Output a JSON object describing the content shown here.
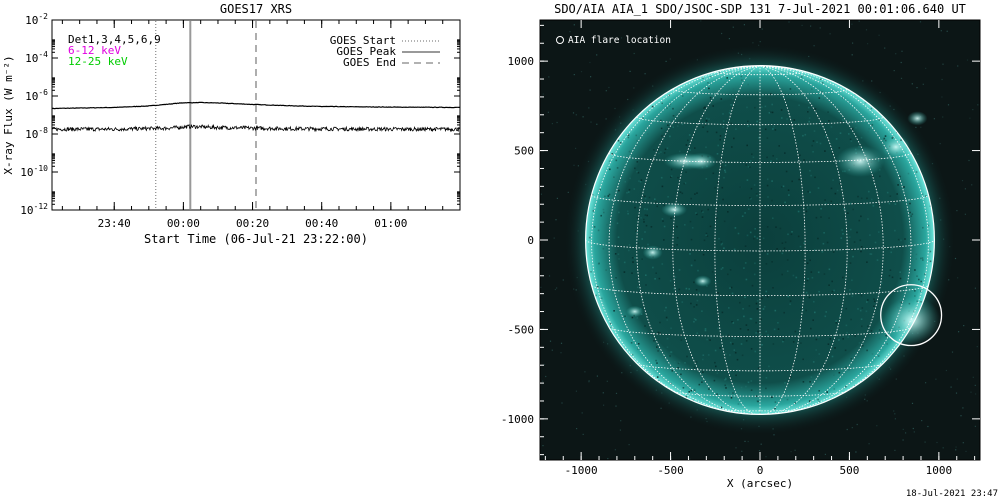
{
  "chart_data": [
    {
      "type": "line",
      "title": "GOES17 XRS",
      "xlabel": "Start Time (06-Jul-21 23:22:00)",
      "ylabel": "X-ray Flux (W m⁻²)",
      "y_scale": "log",
      "xlim": [
        "2021-07-06 23:22:00",
        "2021-07-07 01:20:00"
      ],
      "ylim": [
        1e-12,
        0.01
      ],
      "x_ticks": [
        "23:40",
        "00:00",
        "00:20",
        "00:40",
        "01:00"
      ],
      "y_ticks": [
        {
          "value": 0.01,
          "label_base": "10",
          "label_exp": "-2"
        },
        {
          "value": 0.0001,
          "label_base": "10",
          "label_exp": "-4"
        },
        {
          "value": 1e-06,
          "label_base": "10",
          "label_exp": "-6"
        },
        {
          "value": 1e-08,
          "label_base": "10",
          "label_exp": "-8"
        },
        {
          "value": 1e-10,
          "label_base": "10",
          "label_exp": "-10"
        },
        {
          "value": 1e-12,
          "label_base": "10",
          "label_exp": "-12"
        }
      ],
      "annotations": [
        {
          "text": "Det1,3,4,5,6,9",
          "color": "#000000"
        },
        {
          "text": "6-12 keV",
          "color": "#e000e0"
        },
        {
          "text": "12-25 keV",
          "color": "#00cc00"
        }
      ],
      "legend": [
        {
          "label": "GOES Start",
          "style": "dotted"
        },
        {
          "label": "GOES Peak",
          "style": "solid"
        },
        {
          "label": "GOES End",
          "style": "dashed"
        }
      ],
      "legend_placement": "top-right",
      "event_markers": [
        {
          "name": "GOES Start",
          "time": "2021-07-06 23:52:00",
          "style": "dotted"
        },
        {
          "name": "GOES Peak",
          "time": "2021-07-07 00:02:00",
          "style": "solid"
        },
        {
          "name": "GOES End",
          "time": "2021-07-07 00:21:00",
          "style": "dashed"
        }
      ],
      "series": [
        {
          "band": "long",
          "x": [
            "2021-07-06 23:22:00",
            "2021-07-06 23:40:00",
            "2021-07-06 23:50:00",
            "2021-07-07 00:00:00",
            "2021-07-07 00:05:00",
            "2021-07-07 00:10:00",
            "2021-07-07 00:20:00",
            "2021-07-07 00:30:00",
            "2021-07-07 00:40:00",
            "2021-07-07 01:00:00",
            "2021-07-07 01:20:00"
          ],
          "y": [
            2.2e-07,
            2.5e-07,
            3e-07,
            4.4e-07,
            4.5e-07,
            4.3e-07,
            3.6e-07,
            3.1e-07,
            2.8e-07,
            2.6e-07,
            2.5e-07
          ]
        },
        {
          "band": "short",
          "x": [
            "2021-07-06 23:22:00",
            "2021-07-06 23:40:00",
            "2021-07-06 23:55:00",
            "2021-07-07 00:02:00",
            "2021-07-07 00:10:00",
            "2021-07-07 00:30:00",
            "2021-07-07 01:00:00",
            "2021-07-07 01:20:00"
          ],
          "y": [
            1.8e-08,
            1.8e-08,
            2e-08,
            2.5e-08,
            2.2e-08,
            1.9e-08,
            1.8e-08,
            1.8e-08
          ]
        }
      ],
      "grid": false
    },
    {
      "type": "image",
      "title": "SDO/AIA AIA_1 SDO/JSOC-SDP 131  7-Jul-2021 00:01:06.640 UT",
      "xlabel": "X (arcsec)",
      "ylabel": "",
      "xlim": [
        -1230,
        1230
      ],
      "ylim": [
        -1230,
        1230
      ],
      "x_ticks": [
        -1000,
        -500,
        0,
        500,
        1000
      ],
      "y_ticks": [
        -1000,
        -500,
        0,
        500,
        1000
      ],
      "legend": [
        {
          "label": "AIA flare location",
          "marker": "circle"
        }
      ],
      "flare_location": {
        "x": 845,
        "y": -420
      },
      "grid": true
    }
  ],
  "footer_timestamp": "18-Jul-2021 23:47"
}
